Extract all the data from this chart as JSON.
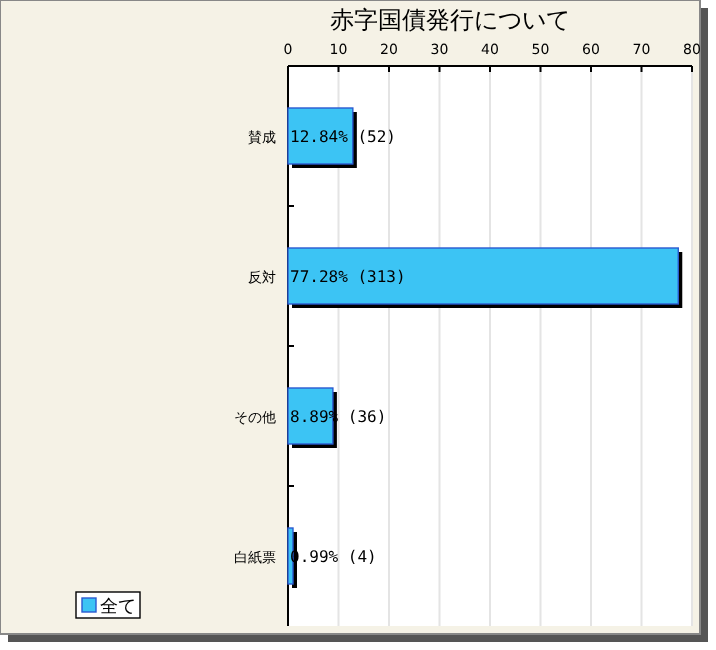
{
  "chart_data": {
    "type": "bar",
    "orientation": "horizontal",
    "title": "赤字国債発行について",
    "categories": [
      "賛成",
      "反対",
      "その他",
      "白紙票"
    ],
    "series": [
      {
        "name": "全て",
        "color": "#3cc4f4",
        "values": [
          12.84,
          77.28,
          8.89,
          0.99
        ],
        "value_labels": [
          "12.84% (52)",
          "77.28% (313)",
          "8.89% (36)",
          "0.99% (4)"
        ]
      }
    ],
    "xlim": [
      0,
      80
    ],
    "xticks": [
      0,
      10,
      20,
      30,
      40,
      50,
      60,
      70,
      80
    ],
    "grid": "x",
    "legend": "bottom left"
  }
}
